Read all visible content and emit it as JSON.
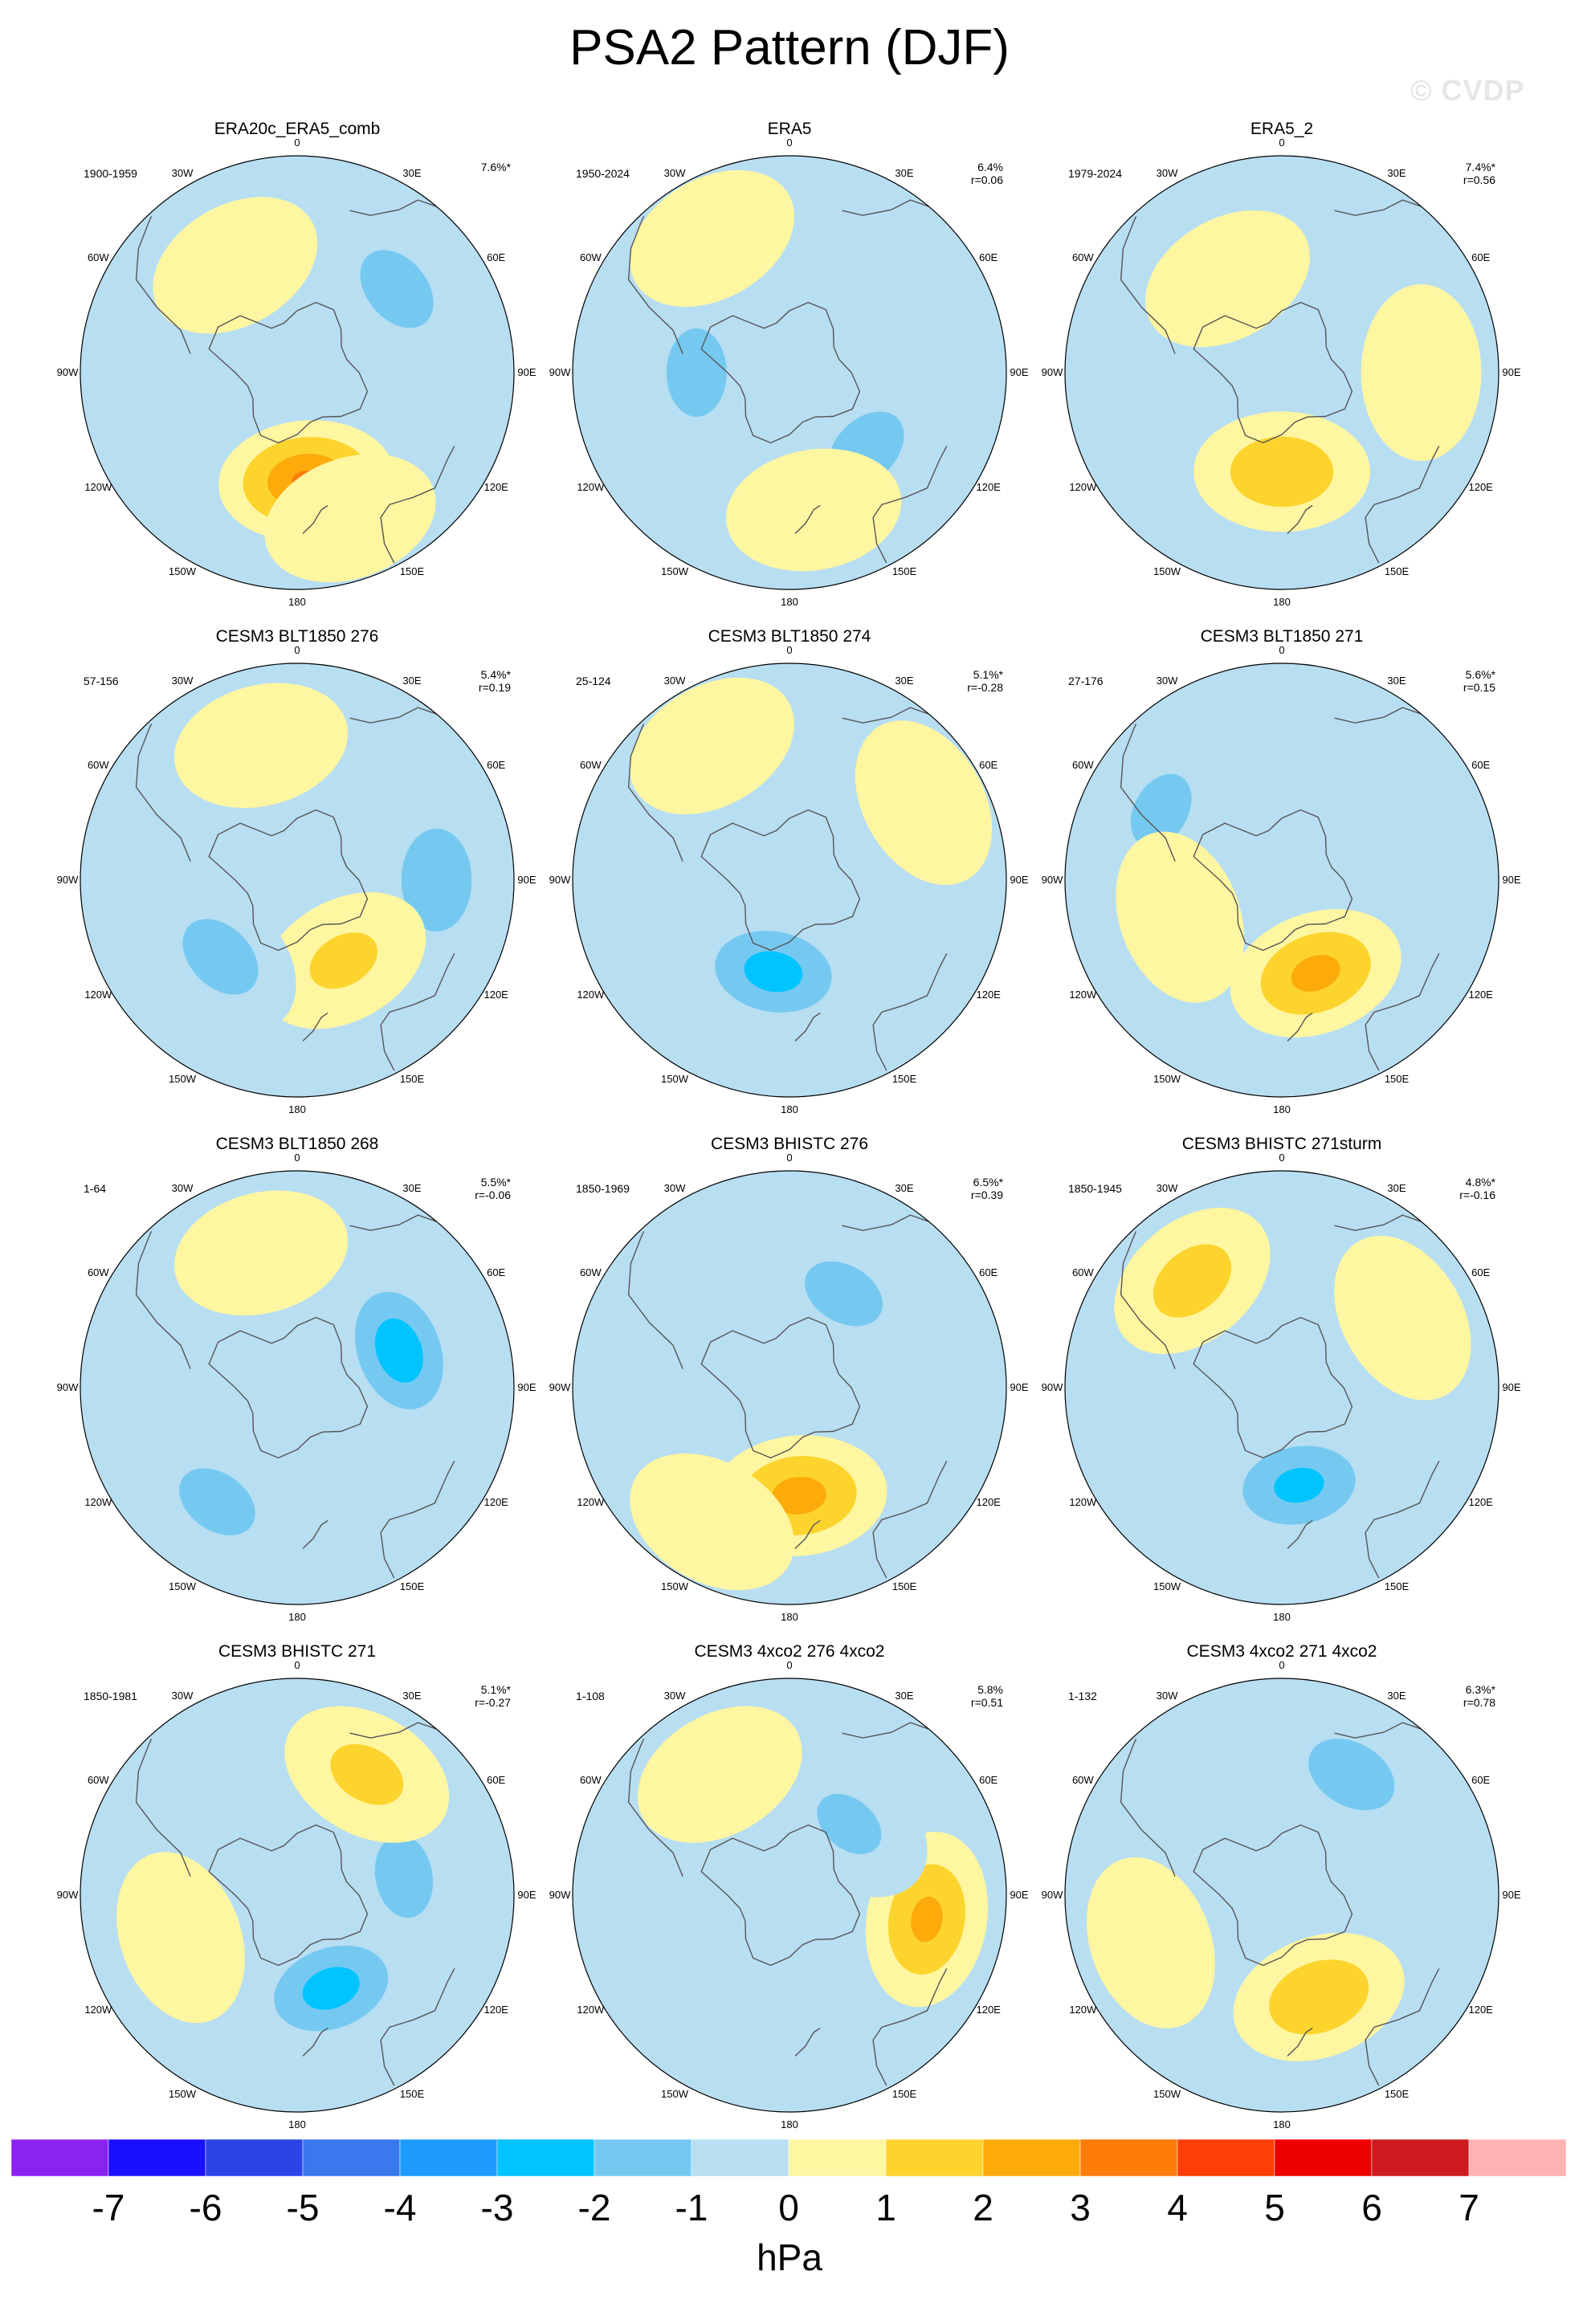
{
  "title": "PSA2 Pattern (DJF)",
  "credit": "© CVDP",
  "longitude_labels": [
    "0",
    "30E",
    "60E",
    "90E",
    "120E",
    "150E",
    "180",
    "150W",
    "120W",
    "90W",
    "60W",
    "30W"
  ],
  "colorbar": {
    "unit": "hPa",
    "ticks": [
      "-7",
      "-6",
      "-5",
      "-4",
      "-3",
      "-2",
      "-1",
      "0",
      "1",
      "2",
      "3",
      "4",
      "5",
      "6",
      "7"
    ],
    "colors": [
      "#8a22f0",
      "#1a10ff",
      "#2c43e6",
      "#3a78ee",
      "#1e9bff",
      "#00c4ff",
      "#75c9f1",
      "#b8def2",
      "#fff6a1",
      "#fdd42e",
      "#fdaa0b",
      "#fe7c0a",
      "#ff3e07",
      "#ec0000",
      "#cc1a1e",
      "#ffb2b2"
    ]
  },
  "panels": [
    {
      "title": "ERA20c_ERA5_comb",
      "period": "1900-1959",
      "pct": "7.6%*",
      "r": ""
    },
    {
      "title": "ERA5",
      "period": "1950-2024",
      "pct": "6.4%",
      "r": "r=0.06"
    },
    {
      "title": "ERA5_2",
      "period": "1979-2024",
      "pct": "7.4%*",
      "r": "r=0.56"
    },
    {
      "title": "CESM3 BLT1850 276",
      "period": "57-156",
      "pct": "5.4%*",
      "r": "r=0.19"
    },
    {
      "title": "CESM3 BLT1850 274",
      "period": "25-124",
      "pct": "5.1%*",
      "r": "r=-0.28"
    },
    {
      "title": "CESM3 BLT1850 271",
      "period": "27-176",
      "pct": "5.6%*",
      "r": "r=0.15"
    },
    {
      "title": "CESM3 BLT1850 268",
      "period": "1-64",
      "pct": "5.5%*",
      "r": "r=-0.06"
    },
    {
      "title": "CESM3 BHISTC 276",
      "period": "1850-1969",
      "pct": "6.5%*",
      "r": "r=0.39"
    },
    {
      "title": "CESM3 BHISTC 271sturm",
      "period": "1850-1945",
      "pct": "4.8%*",
      "r": "r=-0.16"
    },
    {
      "title": "CESM3 BHISTC 271",
      "period": "1850-1981",
      "pct": "5.1%*",
      "r": "r=-0.27"
    },
    {
      "title": "CESM3 4xco2 276 4xco2",
      "period": "1-108",
      "pct": "5.8%",
      "r": "r=0.51"
    },
    {
      "title": "CESM3 4xco2 271 4xco2",
      "period": "1-132",
      "pct": "6.3%*",
      "r": "r=0.78"
    }
  ],
  "anomaly_fields": [
    [
      {
        "lon": 175,
        "lat": -55,
        "value": 3.2
      },
      {
        "lon": 50,
        "lat": -48,
        "value": -1.6
      },
      {
        "lon": 330,
        "lat": -50,
        "value": 0.7
      },
      {
        "lon": 160,
        "lat": -40,
        "value": 0.6
      }
    ],
    [
      {
        "lon": 270,
        "lat": -60,
        "value": -1.6
      },
      {
        "lon": 135,
        "lat": -55,
        "value": -1.6
      },
      {
        "lon": 170,
        "lat": -45,
        "value": 0.7
      },
      {
        "lon": 330,
        "lat": -40,
        "value": 0.8
      }
    ],
    [
      {
        "lon": 180,
        "lat": -58,
        "value": 2.0
      },
      {
        "lon": 330,
        "lat": -55,
        "value": 0.8
      },
      {
        "lon": 90,
        "lat": -45,
        "value": 0.6
      }
    ],
    [
      {
        "lon": 90,
        "lat": -45,
        "value": -2.0
      },
      {
        "lon": 150,
        "lat": -60,
        "value": 1.3
      },
      {
        "lon": 225,
        "lat": -55,
        "value": -1.6
      },
      {
        "lon": 345,
        "lat": -45,
        "value": 0.8
      }
    ],
    [
      {
        "lon": 190,
        "lat": -60,
        "value": -2.6
      },
      {
        "lon": 60,
        "lat": -40,
        "value": 0.7
      },
      {
        "lon": 330,
        "lat": -40,
        "value": 0.7
      }
    ],
    [
      {
        "lon": 160,
        "lat": -58,
        "value": 2.4
      },
      {
        "lon": 300,
        "lat": -45,
        "value": -1.4
      },
      {
        "lon": 250,
        "lat": -55,
        "value": 0.7
      }
    ],
    [
      {
        "lon": 70,
        "lat": -55,
        "value": -2.8
      },
      {
        "lon": 215,
        "lat": -45,
        "value": -1.5
      },
      {
        "lon": 345,
        "lat": -45,
        "value": 0.7
      }
    ],
    [
      {
        "lon": 175,
        "lat": -55,
        "value": 2.5
      },
      {
        "lon": 30,
        "lat": -55,
        "value": -1.5
      },
      {
        "lon": 210,
        "lat": -40,
        "value": 0.6
      }
    ],
    [
      {
        "lon": 170,
        "lat": -58,
        "value": -2.4
      },
      {
        "lon": 320,
        "lat": -45,
        "value": 1.6
      },
      {
        "lon": 60,
        "lat": -45,
        "value": 0.7
      }
    ],
    [
      {
        "lon": 160,
        "lat": -58,
        "value": -2.6
      },
      {
        "lon": 80,
        "lat": -55,
        "value": -1.5
      },
      {
        "lon": 30,
        "lat": -45,
        "value": 1.4
      },
      {
        "lon": 250,
        "lat": -50,
        "value": 0.7
      }
    ],
    [
      {
        "lon": 100,
        "lat": -45,
        "value": 2.3
      },
      {
        "lon": 40,
        "lat": -60,
        "value": -1.3
      },
      {
        "lon": 330,
        "lat": -45,
        "value": 0.7
      }
    ],
    [
      {
        "lon": 160,
        "lat": -55,
        "value": 2.0
      },
      {
        "lon": 30,
        "lat": -45,
        "value": -1.7
      },
      {
        "lon": 250,
        "lat": -45,
        "value": 0.6
      }
    ]
  ]
}
